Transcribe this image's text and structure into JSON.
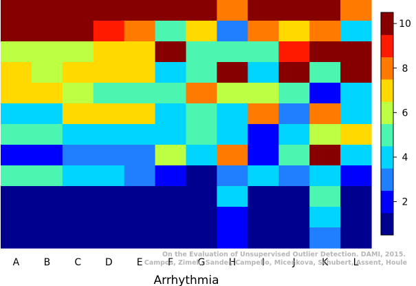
{
  "chart_data": {
    "type": "heatmap",
    "xlabel": "Arrhythmia",
    "ylabel": "",
    "columns": [
      "A",
      "B",
      "C",
      "D",
      "E",
      "F",
      "G",
      "H",
      "I",
      "J",
      "K",
      "L"
    ],
    "rows_top_to_bottom": 12,
    "values": [
      [
        10,
        10,
        10,
        10,
        10,
        10,
        10,
        8,
        10,
        10,
        10,
        8
      ],
      [
        10,
        10,
        10,
        9,
        8,
        5,
        7,
        3,
        8,
        7,
        8,
        4
      ],
      [
        6,
        6,
        6,
        7,
        7,
        10,
        5,
        5,
        5,
        9,
        10,
        10
      ],
      [
        7,
        6,
        7,
        7,
        7,
        4,
        5,
        10,
        4,
        10,
        5,
        10
      ],
      [
        7,
        7,
        6,
        5,
        5,
        5,
        8,
        6,
        6,
        5,
        2,
        4
      ],
      [
        4,
        4,
        7,
        7,
        7,
        4,
        5,
        4,
        8,
        3,
        8,
        4
      ],
      [
        5,
        5,
        4,
        4,
        4,
        4,
        5,
        4,
        2,
        4,
        6,
        7
      ],
      [
        2,
        2,
        3,
        3,
        3,
        6,
        4,
        8,
        2,
        5,
        10,
        4
      ],
      [
        5,
        5,
        4,
        4,
        3,
        2,
        1,
        3,
        4,
        3,
        4,
        2
      ],
      [
        1,
        1,
        1,
        1,
        1,
        1,
        1,
        4,
        1,
        1,
        5,
        1
      ],
      [
        1,
        1,
        1,
        1,
        1,
        1,
        1,
        2,
        1,
        1,
        4,
        1
      ],
      [
        1,
        1,
        1,
        1,
        1,
        1,
        1,
        2,
        1,
        1,
        3,
        1
      ]
    ],
    "colorbar": {
      "min": 0.5,
      "max": 10.5,
      "ticks": [
        2,
        4,
        6,
        8,
        10
      ],
      "colormap": "jet",
      "levels": 10
    },
    "colors": {
      "1": "#00008f",
      "2": "#0000ff",
      "3": "#1f7fff",
      "4": "#00d5ff",
      "5": "#4cf5b0",
      "6": "#bdff42",
      "7": "#ffd900",
      "8": "#ff7a00",
      "9": "#ff1a00",
      "10": "#870000"
    },
    "annotation": {
      "line1": "On the Evaluation of Unsupervised Outlier Detection. DAMI, 2015.",
      "line2": "Campos, Zimek, Sander, Campello, Micenkova, Schubert, Assent, Houle"
    }
  }
}
